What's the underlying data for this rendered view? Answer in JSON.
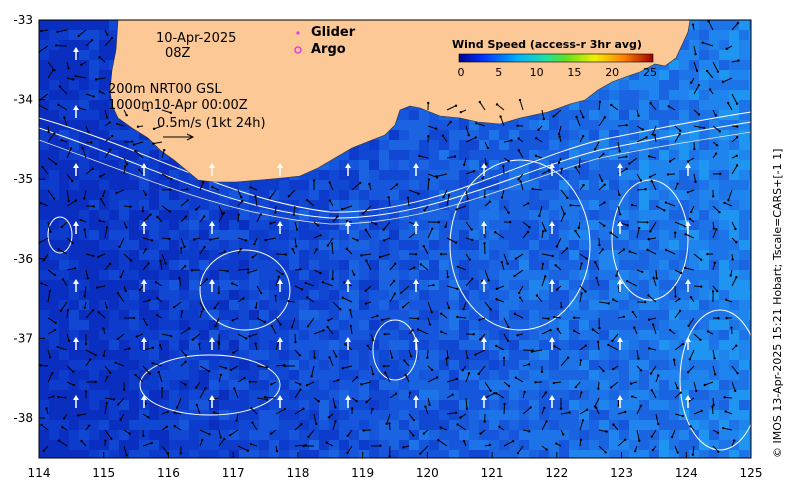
{
  "map": {
    "lon_ticks": [
      "114",
      "115",
      "116",
      "117",
      "118",
      "119",
      "120",
      "121",
      "122",
      "123",
      "124",
      "125"
    ],
    "lat_ticks": [
      "-33",
      "-34",
      "-35",
      "-36",
      "-37",
      "-38"
    ],
    "date": "10-Apr-2025",
    "time": "08Z",
    "contour_line1": "200m  NRT00 GSL",
    "contour_line2": "1000m10-Apr 00:00Z",
    "vector_scale": "0.5m/s (1kt 24h)",
    "glider_label": "Glider",
    "argo_label": "Argo",
    "colorbar_title": "Wind Speed (access-r 3hr avg)",
    "colorbar_ticks": [
      "0",
      "5",
      "10",
      "15",
      "20",
      "25"
    ],
    "credit": "© IMOS 13-Apr-2025 15:21 Hobart; Tscale=CARS+[-1 1]",
    "colors": {
      "land": "#fbc896",
      "ocean_deep": "#0a35c8",
      "ocean_light": "#20a8f0",
      "glider": "#e040e0",
      "argo": "#e040e0"
    }
  }
}
